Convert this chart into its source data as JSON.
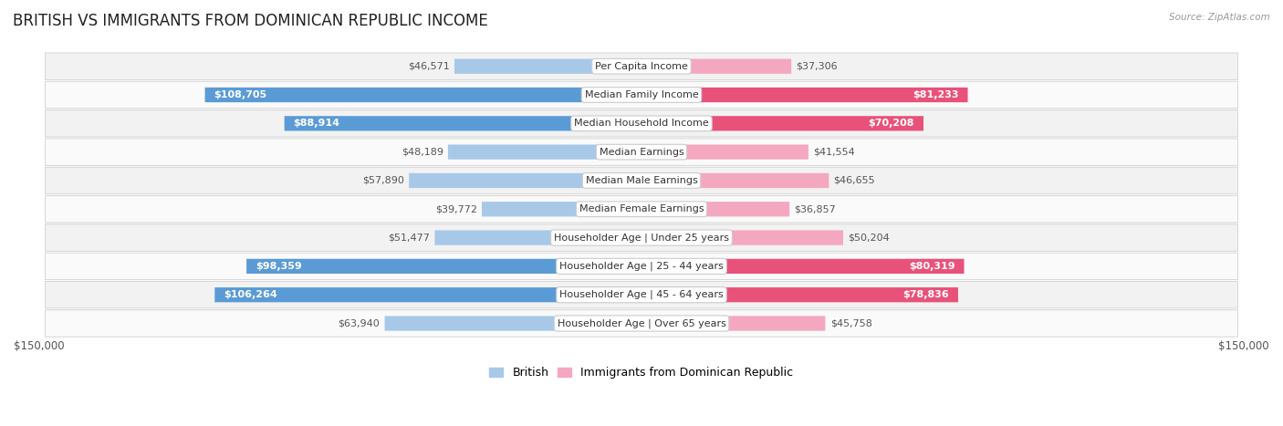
{
  "title": "BRITISH VS IMMIGRANTS FROM DOMINICAN REPUBLIC INCOME",
  "source": "Source: ZipAtlas.com",
  "categories": [
    "Per Capita Income",
    "Median Family Income",
    "Median Household Income",
    "Median Earnings",
    "Median Male Earnings",
    "Median Female Earnings",
    "Householder Age | Under 25 years",
    "Householder Age | 25 - 44 years",
    "Householder Age | 45 - 64 years",
    "Householder Age | Over 65 years"
  ],
  "british_values": [
    46571,
    108705,
    88914,
    48189,
    57890,
    39772,
    51477,
    98359,
    106264,
    63940
  ],
  "immigrant_values": [
    37306,
    81233,
    70208,
    41554,
    46655,
    36857,
    50204,
    80319,
    78836,
    45758
  ],
  "british_color_light": "#a8c8e8",
  "british_color_dark": "#5b9bd5",
  "immigrant_color_light": "#f4a8c0",
  "immigrant_color_dark": "#e8527a",
  "british_dark_threshold": 85000,
  "immigrant_dark_threshold": 65000,
  "bar_height": 0.52,
  "xlim": 150000,
  "row_bg_color": "#f2f2f2",
  "row_bg_color_alt": "#fafafa",
  "label_fontsize": 8.0,
  "value_fontsize": 8.0,
  "title_fontsize": 12,
  "legend_fontsize": 9,
  "british_inside_threshold": 85000,
  "immigrant_inside_threshold": 65000
}
